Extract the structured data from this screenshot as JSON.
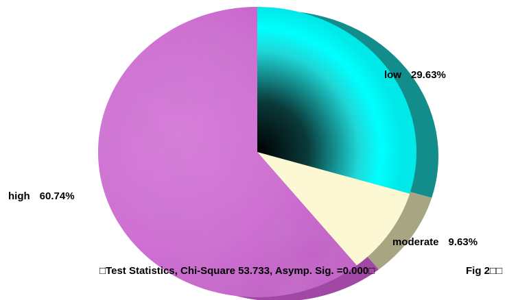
{
  "chart_data": {
    "type": "pie",
    "title": "",
    "slices": [
      {
        "label": "low",
        "value": 29.63,
        "display": "29.63%",
        "color": "#1bb8b8"
      },
      {
        "label": "moderate",
        "value": 9.63,
        "display": "9.63%",
        "color": "#fcf8d4"
      },
      {
        "label": "high",
        "value": 60.74,
        "display": "60.74%",
        "color": "#d874dc"
      }
    ],
    "legend": "none"
  },
  "caption": {
    "statistics": "□Test Statistics, Chi-Square 53.733, Asymp. Sig. =0.000□",
    "figure": "Fig 2□□"
  }
}
